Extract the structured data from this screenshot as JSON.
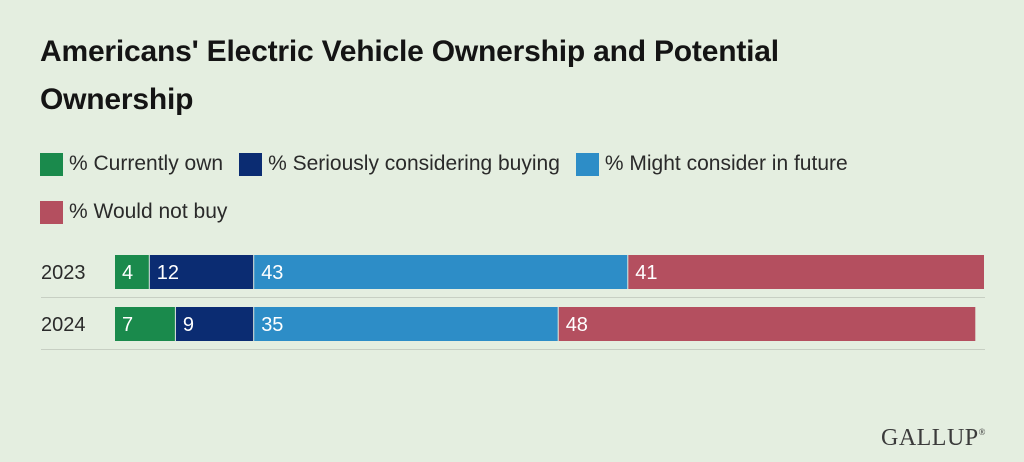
{
  "title": "Americans' Electric Vehicle Ownership and Potential Ownership",
  "brand": "GALLUP",
  "chart_data": {
    "type": "bar",
    "orientation": "horizontal",
    "stacked": true,
    "title": "Americans' Electric Vehicle Ownership and Potential Ownership",
    "categories": [
      "2023",
      "2024"
    ],
    "series": [
      {
        "name": "% Currently own",
        "color": "#1a8a4c",
        "values": [
          4,
          7
        ]
      },
      {
        "name": "% Seriously considering buying",
        "color": "#0b2c72",
        "values": [
          12,
          9
        ]
      },
      {
        "name": "% Might consider in future",
        "color": "#2d8dc7",
        "values": [
          43,
          35
        ]
      },
      {
        "name": "% Would not buy",
        "color": "#b44f5f",
        "values": [
          41,
          48
        ]
      }
    ],
    "legend_position": "top",
    "data_labels": true,
    "grid": false,
    "xlim": [
      0,
      100
    ]
  }
}
